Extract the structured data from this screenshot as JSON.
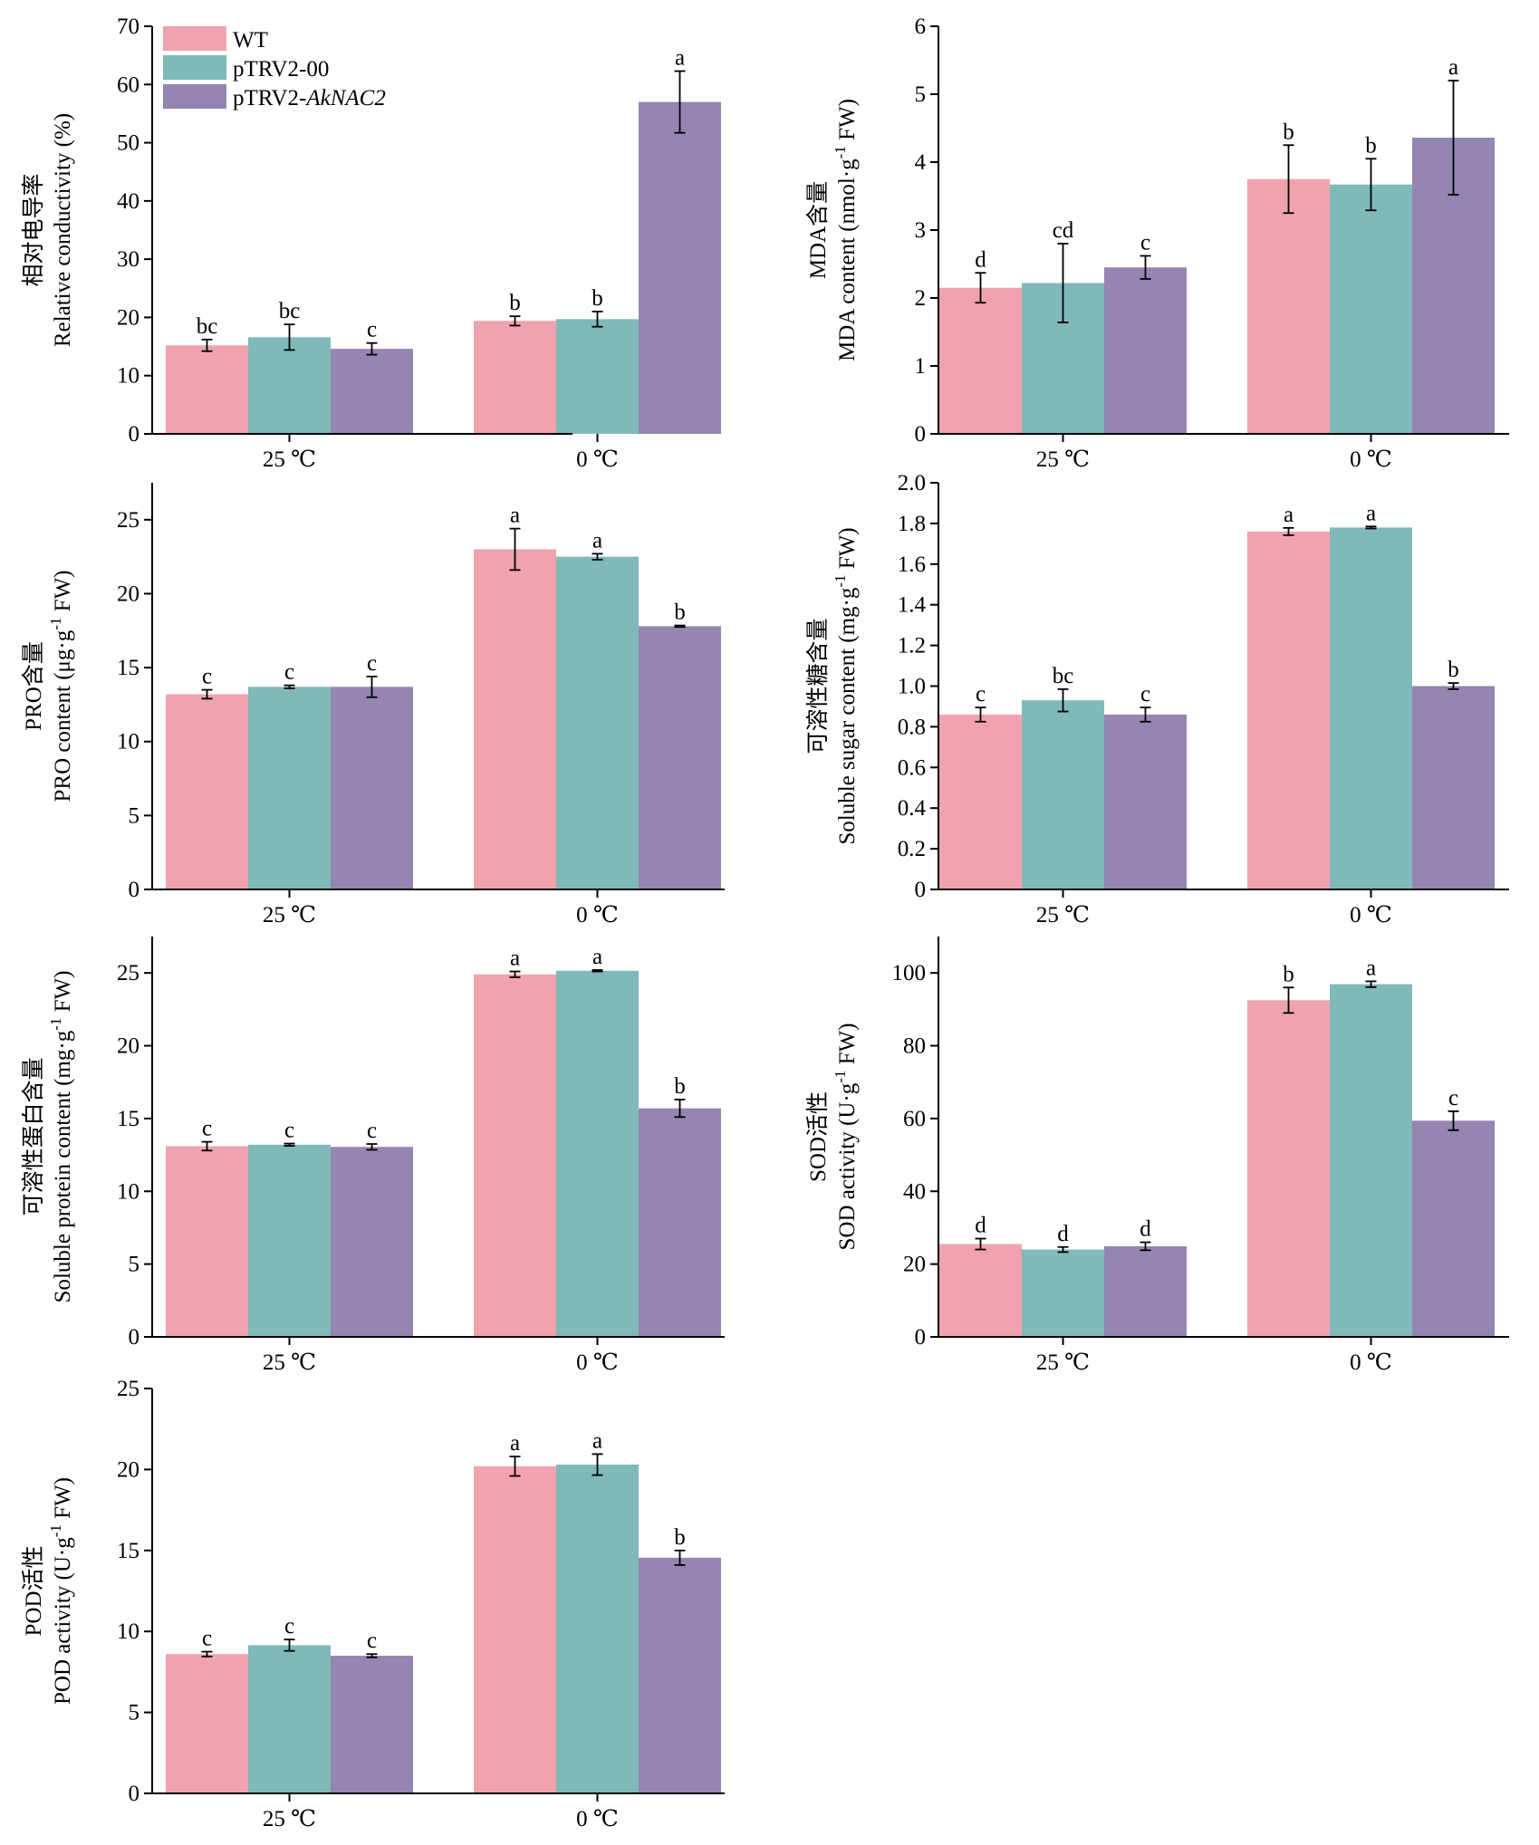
{
  "legend": {
    "items": [
      {
        "label": "WT",
        "color": "#F0A3AE"
      },
      {
        "label": "pTRV2-00",
        "color": "#80B9B9"
      },
      {
        "label": "pTRV2-",
        "label_italic": "AkNAC2",
        "color": "#9485B2"
      }
    ]
  },
  "chart_data": [
    {
      "type": "bar",
      "id": "rc",
      "ylabel_cn": "相对电导率",
      "ylabel_en": "Relative conductivity (%)",
      "categories": [
        "25 ℃",
        "0 ℃"
      ],
      "ylim": [
        0,
        70
      ],
      "yticks": [
        0,
        10,
        20,
        30,
        40,
        50,
        60,
        70
      ],
      "series": [
        {
          "name": "WT",
          "values": [
            15.2,
            19.4
          ],
          "errors": [
            1.0,
            0.8
          ],
          "letters": [
            "bc",
            "b"
          ]
        },
        {
          "name": "pTRV2-00",
          "values": [
            16.6,
            19.7
          ],
          "errors": [
            2.2,
            1.3
          ],
          "letters": [
            "bc",
            "b"
          ]
        },
        {
          "name": "pTRV2-AkNAC2",
          "values": [
            14.6,
            57.0
          ],
          "errors": [
            1.0,
            5.3
          ],
          "letters": [
            "c",
            "a"
          ]
        }
      ]
    },
    {
      "type": "bar",
      "id": "mda",
      "ylabel_cn": "MDA含量",
      "ylabel_en": "MDA content (nmol·g-1 FW)",
      "ylabel_en_parts": [
        "MDA content (nmol·g",
        "-1",
        " FW)"
      ],
      "categories": [
        "25 ℃",
        "0 ℃"
      ],
      "ylim": [
        0,
        6
      ],
      "yticks": [
        0,
        1,
        2,
        3,
        4,
        5,
        6
      ],
      "series": [
        {
          "name": "WT",
          "values": [
            2.15,
            3.75
          ],
          "errors": [
            0.22,
            0.5
          ],
          "letters": [
            "d",
            "b"
          ]
        },
        {
          "name": "pTRV2-00",
          "values": [
            2.22,
            3.67
          ],
          "errors": [
            0.58,
            0.38
          ],
          "letters": [
            "cd",
            "b"
          ]
        },
        {
          "name": "pTRV2-AkNAC2",
          "values": [
            2.45,
            4.36
          ],
          "errors": [
            0.17,
            0.84
          ],
          "letters": [
            "c",
            "a"
          ]
        }
      ]
    },
    {
      "type": "bar",
      "id": "pro",
      "ylabel_cn": "PRO含量",
      "ylabel_en": "PRO content (μg·g-1 FW)",
      "ylabel_en_parts": [
        "PRO content (μg·g",
        "-1",
        " FW)"
      ],
      "categories": [
        "25 ℃",
        "0 ℃"
      ],
      "ylim": [
        0,
        27.5
      ],
      "yticks": [
        0,
        5,
        10,
        15,
        20,
        25
      ],
      "series": [
        {
          "name": "WT",
          "values": [
            13.2,
            23.0
          ],
          "errors": [
            0.3,
            1.4
          ],
          "letters": [
            "c",
            "a"
          ]
        },
        {
          "name": "pTRV2-00",
          "values": [
            13.7,
            22.5
          ],
          "errors": [
            0.1,
            0.2
          ],
          "letters": [
            "c",
            "a"
          ]
        },
        {
          "name": "pTRV2-AkNAC2",
          "values": [
            13.7,
            17.8
          ],
          "errors": [
            0.7,
            0.05
          ],
          "letters": [
            "c",
            "b"
          ]
        }
      ]
    },
    {
      "type": "bar",
      "id": "ss",
      "ylabel_cn": "可溶性糖含量",
      "ylabel_en": "Soluble sugar content (mg·g-1 FW)",
      "ylabel_en_parts": [
        "Soluble sugar content (mg·g",
        "-1",
        " FW)"
      ],
      "categories": [
        "25 ℃",
        "0 ℃"
      ],
      "ylim": [
        0,
        2.0
      ],
      "yticks": [
        0,
        0.2,
        0.4,
        0.6,
        0.8,
        1.0,
        1.2,
        1.4,
        1.6,
        1.8,
        2.0
      ],
      "ytick_labels": [
        "0",
        "0.2",
        "0.4",
        "0.6",
        "0.8",
        "1.0",
        "1.2",
        "1.4",
        "1.6",
        "1.8",
        "2.0"
      ],
      "series": [
        {
          "name": "WT",
          "values": [
            0.86,
            1.76
          ],
          "errors": [
            0.035,
            0.018
          ],
          "letters": [
            "c",
            "a"
          ]
        },
        {
          "name": "pTRV2-00",
          "values": [
            0.93,
            1.78
          ],
          "errors": [
            0.055,
            0.005
          ],
          "letters": [
            "bc",
            "a"
          ]
        },
        {
          "name": "pTRV2-AkNAC2",
          "values": [
            0.86,
            1.0
          ],
          "errors": [
            0.035,
            0.015
          ],
          "letters": [
            "c",
            "b"
          ]
        }
      ]
    },
    {
      "type": "bar",
      "id": "sp",
      "ylabel_cn": "可溶性蛋白含量",
      "ylabel_en": "Soluble protein content (mg·g-1 FW)",
      "ylabel_en_parts": [
        "Soluble protein content (mg·g",
        "-1",
        " FW)"
      ],
      "categories": [
        "25 ℃",
        "0 ℃"
      ],
      "ylim": [
        0,
        27.5
      ],
      "yticks": [
        0,
        5,
        10,
        15,
        20,
        25
      ],
      "series": [
        {
          "name": "WT",
          "values": [
            13.1,
            24.9
          ],
          "errors": [
            0.3,
            0.2
          ],
          "letters": [
            "c",
            "a"
          ]
        },
        {
          "name": "pTRV2-00",
          "values": [
            13.2,
            25.15
          ],
          "errors": [
            0.08,
            0.05
          ],
          "letters": [
            "c",
            "a"
          ]
        },
        {
          "name": "pTRV2-AkNAC2",
          "values": [
            13.05,
            15.7
          ],
          "errors": [
            0.2,
            0.6
          ],
          "letters": [
            "c",
            "b"
          ]
        }
      ]
    },
    {
      "type": "bar",
      "id": "sod",
      "ylabel_cn": "SOD活性",
      "ylabel_en": "SOD activity (U·g-1 FW)",
      "ylabel_en_parts": [
        "SOD activity (U·g",
        "-1",
        " FW)"
      ],
      "categories": [
        "25 ℃",
        "0 ℃"
      ],
      "ylim": [
        0,
        110
      ],
      "yticks": [
        0,
        20,
        40,
        60,
        80,
        100
      ],
      "series": [
        {
          "name": "WT",
          "values": [
            25.5,
            92.5
          ],
          "errors": [
            1.5,
            3.5
          ],
          "letters": [
            "d",
            "b"
          ]
        },
        {
          "name": "pTRV2-00",
          "values": [
            24.0,
            96.9
          ],
          "errors": [
            0.7,
            0.8
          ],
          "letters": [
            "d",
            "a"
          ]
        },
        {
          "name": "pTRV2-AkNAC2",
          "values": [
            24.9,
            59.4
          ],
          "errors": [
            1.1,
            2.6
          ],
          "letters": [
            "d",
            "c"
          ]
        }
      ]
    },
    {
      "type": "bar",
      "id": "pod",
      "ylabel_cn": "POD活性",
      "ylabel_en": "POD activity (U·g-1 FW)",
      "ylabel_en_parts": [
        "POD activity (U·g",
        "-1",
        " FW)"
      ],
      "categories": [
        "25 ℃",
        "0 ℃"
      ],
      "ylim": [
        0,
        25
      ],
      "yticks": [
        0,
        5,
        10,
        15,
        20,
        25
      ],
      "series": [
        {
          "name": "WT",
          "values": [
            8.6,
            20.2
          ],
          "errors": [
            0.15,
            0.6
          ],
          "letters": [
            "c",
            "a"
          ]
        },
        {
          "name": "pTRV2-00",
          "values": [
            9.15,
            20.3
          ],
          "errors": [
            0.35,
            0.65
          ],
          "letters": [
            "c",
            "a"
          ]
        },
        {
          "name": "pTRV2-AkNAC2",
          "values": [
            8.5,
            14.55
          ],
          "errors": [
            0.1,
            0.45
          ],
          "letters": [
            "c",
            "b"
          ]
        }
      ]
    }
  ]
}
